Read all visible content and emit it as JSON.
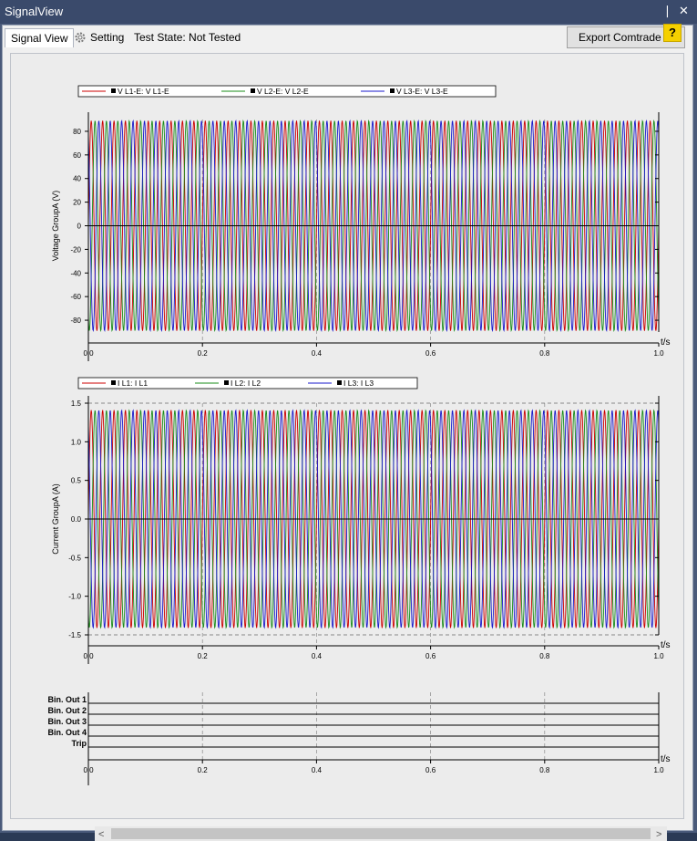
{
  "window": {
    "title": "SignalView",
    "pin_glyph": "❘",
    "close_glyph": "✕"
  },
  "tabs": [
    {
      "label": "Signal View",
      "active": true
    },
    {
      "label": "Setting",
      "icon": "gear-icon",
      "active": false
    }
  ],
  "test_state": "Test State: Not Tested",
  "export_label": "Export Comtrade ...",
  "help_label": "?",
  "colors": {
    "L1": "#cc0000",
    "L2": "#1a8c1a",
    "L3": "#1a1acc",
    "axis": "#000000"
  },
  "chart_data": [
    {
      "type": "line",
      "ylabel": "Voltage GroupA (V)",
      "xlabel": "t/s",
      "xlim": [
        0,
        1.0
      ],
      "ylim": [
        -90,
        90
      ],
      "x_ticks": [
        "0.0",
        "0.2",
        "0.4",
        "0.6",
        "0.8",
        "1.0"
      ],
      "y_ticks": [
        "80",
        "60",
        "40",
        "20",
        "0",
        "-20",
        "-40",
        "-60",
        "-80"
      ],
      "y_tick_values": [
        80,
        60,
        40,
        20,
        0,
        -20,
        -40,
        -60,
        -80
      ],
      "grid": "dashed at x ticks",
      "legend_placement": "top-left",
      "series": [
        {
          "name": "V L1-E: V L1-E",
          "amplitude": 89,
          "frequency_hz": 50,
          "phase_deg": 0
        },
        {
          "name": "V L2-E: V L2-E",
          "amplitude": 89,
          "frequency_hz": 50,
          "phase_deg": -120
        },
        {
          "name": "V L3-E: V L3-E",
          "amplitude": 89,
          "frequency_hz": 50,
          "phase_deg": 120
        }
      ]
    },
    {
      "type": "line",
      "ylabel": "Current GroupA (A)",
      "xlabel": "t/s",
      "xlim": [
        0,
        1.0
      ],
      "ylim": [
        -1.5,
        1.5
      ],
      "x_ticks": [
        "0.0",
        "0.2",
        "0.4",
        "0.6",
        "0.8",
        "1.0"
      ],
      "y_ticks": [
        "1.5",
        "1.0",
        "0.5",
        "0.0",
        "-0.5",
        "-1.0",
        "-1.5"
      ],
      "y_tick_values": [
        1.5,
        1.0,
        0.5,
        0.0,
        -0.5,
        -1.0,
        -1.5
      ],
      "grid": "dashed at x ticks",
      "legend_placement": "top-left",
      "series": [
        {
          "name": "I L1: I L1",
          "amplitude": 1.41,
          "frequency_hz": 50,
          "phase_deg": 0
        },
        {
          "name": "I L2: I L2",
          "amplitude": 1.41,
          "frequency_hz": 50,
          "phase_deg": -120
        },
        {
          "name": "I L3: I L3",
          "amplitude": 1.41,
          "frequency_hz": 50,
          "phase_deg": 120
        }
      ]
    },
    {
      "type": "line",
      "xlabel": "t/s",
      "xlim": [
        0,
        1.0
      ],
      "x_ticks": [
        "0.0",
        "0.2",
        "0.4",
        "0.6",
        "0.8",
        "1.0"
      ],
      "channels": [
        "Bin. Out 1",
        "Bin. Out 2",
        "Bin. Out 3",
        "Bin. Out 4",
        "Trip"
      ],
      "states": [
        0,
        0,
        0,
        0,
        0
      ]
    }
  ],
  "scrollbar": {
    "left_arrow": "<",
    "right_arrow": ">"
  }
}
